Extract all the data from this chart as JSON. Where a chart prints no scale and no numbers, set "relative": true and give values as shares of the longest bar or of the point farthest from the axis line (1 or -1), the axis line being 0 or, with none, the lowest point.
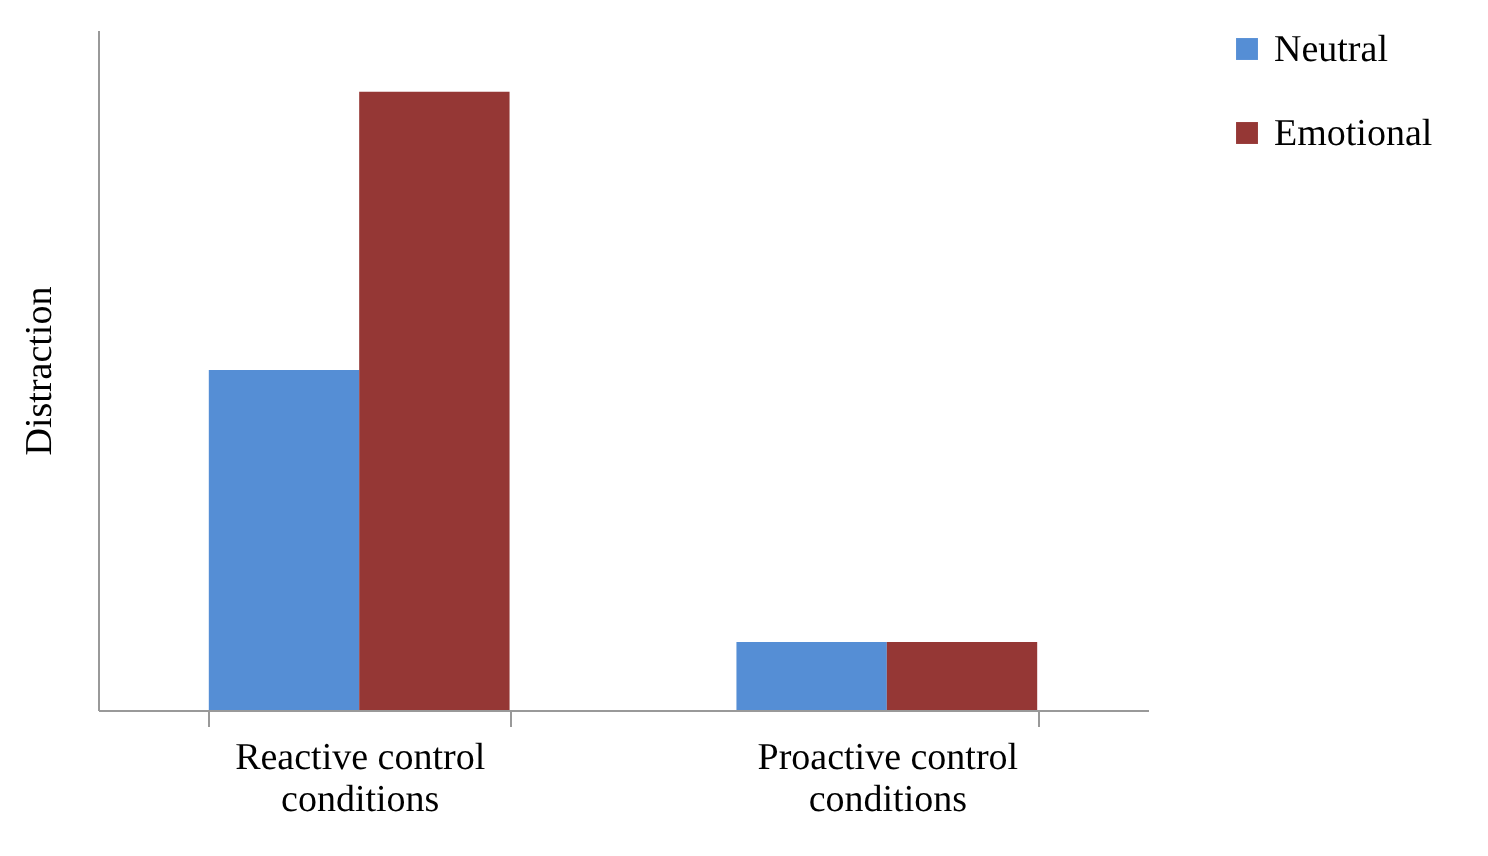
{
  "chart_data": {
    "type": "bar",
    "ylabel": "Distraction",
    "categories": [
      "Reactive control conditions",
      "Proactive control conditions"
    ],
    "relative": true,
    "legend": "top right",
    "grid": false,
    "series": [
      {
        "name": "Neutral",
        "color": "#558ed5",
        "values": [
          0.55,
          0.11
        ]
      },
      {
        "name": "Emotional",
        "color": "#953735",
        "values": [
          1,
          0.11
        ]
      }
    ]
  }
}
